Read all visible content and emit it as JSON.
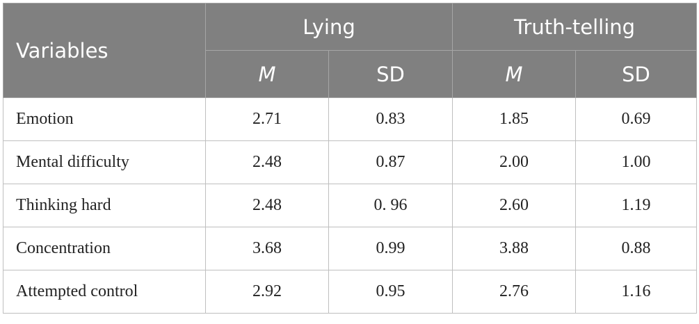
{
  "header": {
    "variables": "Variables",
    "groups": [
      "Lying",
      "Truth-telling"
    ],
    "subheaders": [
      "M",
      "SD",
      "M",
      "SD"
    ]
  },
  "table": {
    "rows": [
      [
        "Emotion",
        "2.71",
        "0.83",
        "1.85",
        "0.69"
      ],
      [
        "Mental difficulty",
        "2.48",
        "0.87",
        "2.00",
        "1.00"
      ],
      [
        "Thinking hard",
        "2.48",
        "0. 96",
        "2.60",
        "1.19"
      ],
      [
        "Concentration",
        "3.68",
        "0.99",
        "3.88",
        "0.88"
      ],
      [
        "Attempted control",
        "2.92",
        "0.95",
        "2.76",
        "1.16"
      ]
    ]
  }
}
